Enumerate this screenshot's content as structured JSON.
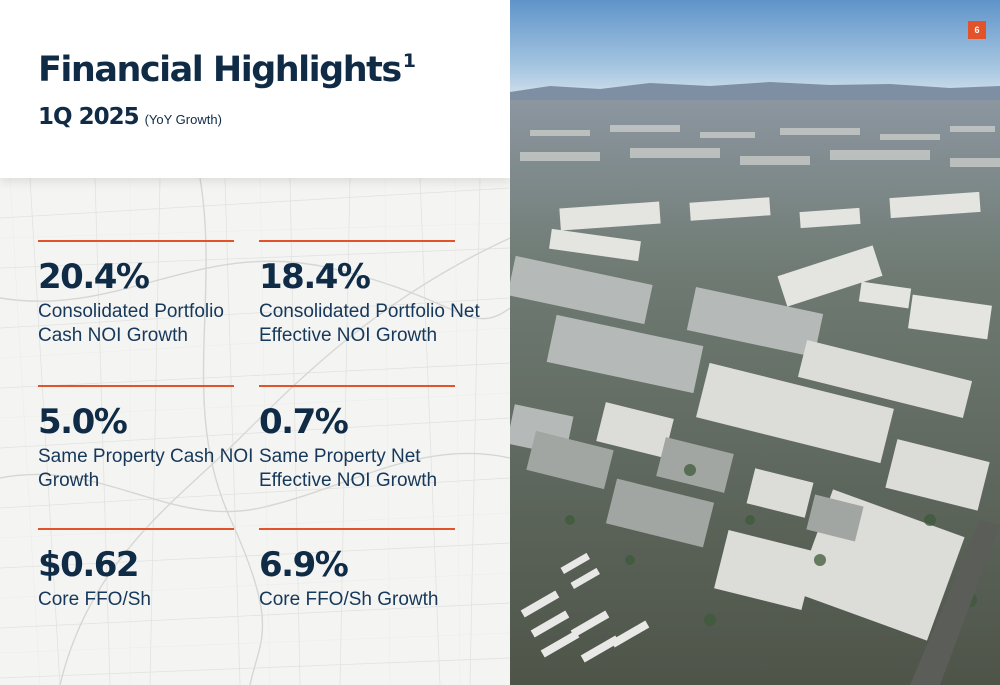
{
  "header": {
    "title": "Financial Highlights",
    "title_footnote": "1",
    "period": "1Q 2025",
    "period_note": "(YoY Growth)"
  },
  "metrics": [
    {
      "value": "20.4%",
      "label": "Consolidated Portfolio Cash NOI Growth"
    },
    {
      "value": "18.4%",
      "label": "Consolidated Portfolio Net Effective NOI Growth"
    },
    {
      "value": "5.0%",
      "label": "Same Property Cash NOI Growth"
    },
    {
      "value": "0.7%",
      "label": "Same Property Net Effective NOI Growth"
    },
    {
      "value": "$0.62",
      "label": "Core FFO/Sh"
    },
    {
      "value": "6.9%",
      "label": "Core FFO/Sh Growth"
    }
  ],
  "page_number": "6",
  "colors": {
    "navy": "#0f2b46",
    "accent_orange": "#e2532a",
    "map_background": "#f4f4f3"
  },
  "icons": {
    "background_map": "street-map",
    "photo": "aerial-industrial-warehouses"
  }
}
